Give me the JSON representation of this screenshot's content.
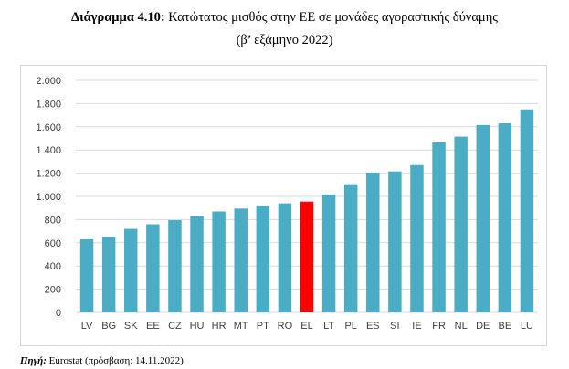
{
  "title": {
    "label": "Διάγραμμα 4.10:",
    "text": " Κατώτατος μισθός στην ΕΕ σε μονάδες αγοραστικής δύναμης",
    "subtitle": "(β’ εξάμηνο 2022)"
  },
  "source": {
    "label": "Πηγή:",
    "text": " Eurostat (πρόσβαση: 14.11.2022)"
  },
  "chart_data": {
    "type": "bar",
    "categories": [
      "LV",
      "BG",
      "SK",
      "EE",
      "CZ",
      "HU",
      "HR",
      "MT",
      "PT",
      "RO",
      "EL",
      "LT",
      "PL",
      "ES",
      "SI",
      "IE",
      "FR",
      "NL",
      "DE",
      "BE",
      "LU"
    ],
    "values": [
      630,
      650,
      720,
      760,
      795,
      830,
      870,
      895,
      920,
      940,
      955,
      1015,
      1105,
      1205,
      1215,
      1270,
      1465,
      1515,
      1615,
      1630,
      1750
    ],
    "highlight_category": "EL",
    "colors": {
      "bar": "#4bacc6",
      "highlight": "#ff0000",
      "grid": "#d9d9d9",
      "axis_text": "#404040"
    },
    "ylim": [
      0,
      2000
    ],
    "yticks": [
      0,
      200,
      400,
      600,
      800,
      1000,
      1200,
      1400,
      1600,
      1800,
      2000
    ],
    "ytick_labels": [
      "0",
      "200",
      "400",
      "600",
      "800",
      "1.000",
      "1.200",
      "1.400",
      "1.600",
      "1.800",
      "2.000"
    ],
    "grid": true,
    "xlabel": "",
    "ylabel": ""
  }
}
